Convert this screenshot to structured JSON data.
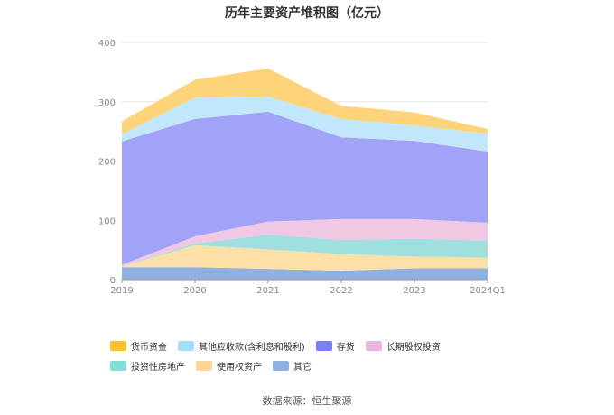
{
  "chart_data": {
    "type": "area",
    "stacked": true,
    "title": "历年主要资产堆积图（亿元）",
    "categories": [
      "2019",
      "2020",
      "2021",
      "2022",
      "2023",
      "2024Q1"
    ],
    "ylim": [
      0,
      400
    ],
    "yticks": [
      0,
      100,
      200,
      300,
      400
    ],
    "grid": true,
    "legend_position": "bottom",
    "series": [
      {
        "name": "其它",
        "color": "#8fb0e0",
        "values": [
          21,
          21,
          18,
          15,
          19,
          19
        ]
      },
      {
        "name": "使用权资产",
        "color": "#fde0a8",
        "values": [
          1,
          37,
          33,
          28,
          20,
          18
        ]
      },
      {
        "name": "投资性房地产",
        "color": "#9fe0de",
        "values": [
          0,
          3,
          25,
          24,
          30,
          29
        ]
      },
      {
        "name": "长期股权投资",
        "color": "#f0c8e4",
        "values": [
          3,
          12,
          22,
          35,
          33,
          30
        ]
      },
      {
        "name": "存货",
        "color": "#a0a3f8",
        "values": [
          208,
          198,
          185,
          138,
          132,
          120
        ]
      },
      {
        "name": "其他应收款(含利息和股利)",
        "color": "#c2e6fa",
        "values": [
          12,
          36,
          26,
          31,
          26,
          30
        ]
      },
      {
        "name": "货币资金",
        "color": "#fed47a",
        "values": [
          22,
          30,
          47,
          22,
          22,
          8
        ]
      }
    ]
  },
  "legend_order": [
    {
      "name": "货币资金",
      "color": "#fbc02d"
    },
    {
      "name": "其他应收款(含利息和股利)",
      "color": "#a8dcfb"
    },
    {
      "name": "存货",
      "color": "#7b7ef5"
    },
    {
      "name": "长期股权投资",
      "color": "#ebb6dc"
    },
    {
      "name": "投资性房地产",
      "color": "#86dcd9"
    },
    {
      "name": "使用权资产",
      "color": "#fdd598"
    },
    {
      "name": "其它",
      "color": "#8fb0e0"
    }
  ],
  "source": "数据来源：恒生聚源"
}
